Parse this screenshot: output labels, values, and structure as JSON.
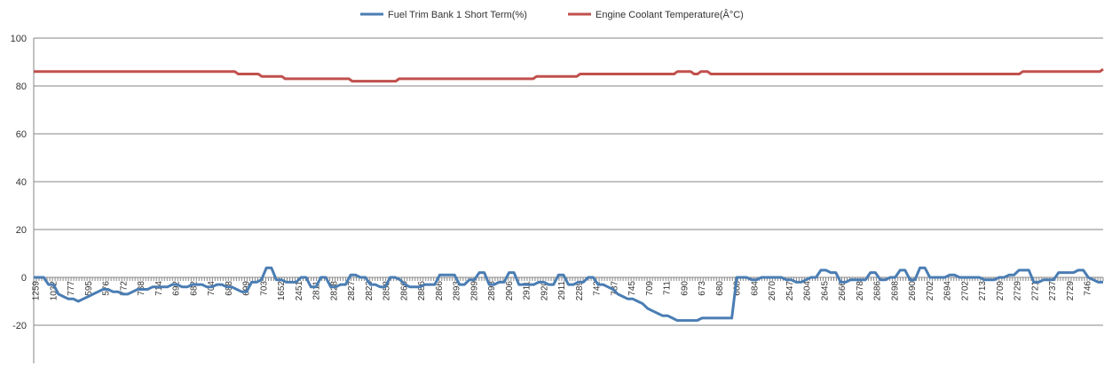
{
  "chart_data": {
    "type": "line",
    "title": "",
    "xlabel": "",
    "ylabel": "",
    "ylim": [
      -20,
      100
    ],
    "yticks": [
      -20,
      0,
      20,
      40,
      60,
      80,
      100
    ],
    "grid": true,
    "legend_position": "top",
    "x_tick_labels": [
      "1259",
      "1032",
      "777",
      "595",
      "576",
      "772",
      "738",
      "714",
      "692",
      "682",
      "704",
      "688",
      "699",
      "703",
      "1652",
      "2451",
      "2811",
      "2828",
      "2827",
      "2823",
      "2858",
      "2866",
      "2886",
      "2866",
      "2893",
      "2899",
      "2898",
      "2906",
      "2911",
      "2920",
      "2911",
      "2289",
      "742",
      "787",
      "745",
      "709",
      "711",
      "690",
      "673",
      "680",
      "668",
      "684",
      "2670",
      "2547",
      "2604",
      "2645",
      "2666",
      "2678",
      "2686",
      "2698",
      "2690",
      "2702",
      "2694",
      "2702",
      "2713",
      "2709",
      "2729",
      "2721",
      "2737",
      "2729",
      "746"
    ],
    "series": [
      {
        "name": "Fuel Trim Bank 1 Short Term(%)",
        "color": "#4a7db3",
        "values": [
          0,
          0,
          0,
          -3,
          -3,
          -7,
          -8,
          -9,
          -9,
          -10,
          -9,
          -8,
          -7,
          -6,
          -5,
          -5,
          -6,
          -6,
          -7,
          -7,
          -6,
          -5,
          -5,
          -5,
          -4,
          -4,
          -4,
          -4,
          -3,
          -3,
          -4,
          -4,
          -3,
          -3,
          -3,
          -4,
          -4,
          -3,
          -3,
          -4,
          -4,
          -5,
          -6,
          -6,
          -2,
          -2,
          -1,
          4,
          4,
          -1,
          -1,
          -2,
          -2,
          -2,
          0,
          0,
          -4,
          -4,
          0,
          0,
          -4,
          -4,
          -3,
          -3,
          1,
          1,
          0,
          0,
          -3,
          -3,
          -4,
          -4,
          0,
          0,
          -1,
          -3,
          -4,
          -4,
          -4,
          -3,
          -3,
          -3,
          1,
          1,
          1,
          1,
          -3,
          -3,
          -1,
          -1,
          2,
          2,
          -3,
          -3,
          -2,
          -2,
          2,
          2,
          -3,
          -3,
          -3,
          -3,
          -2,
          -2,
          -3,
          -3,
          1,
          1,
          -3,
          -3,
          -2,
          -2,
          0,
          0,
          -3,
          -3,
          -4,
          -5,
          -7,
          -8,
          -9,
          -9,
          -10,
          -11,
          -13,
          -14,
          -15,
          -16,
          -16,
          -17,
          -18,
          -18,
          -18,
          -18,
          -18,
          -17,
          -17,
          -17,
          -17,
          -17,
          -17,
          -17,
          0,
          0,
          0,
          -1,
          -1,
          0,
          0,
          0,
          0,
          0,
          -1,
          -1,
          -2,
          -2,
          -1,
          0,
          0,
          3,
          3,
          2,
          2,
          -2,
          -2,
          -1,
          -1,
          -1,
          -1,
          2,
          2,
          -1,
          -1,
          0,
          0,
          3,
          3,
          -1,
          -1,
          4,
          4,
          0,
          0,
          0,
          0,
          1,
          1,
          0,
          0,
          0,
          0,
          0,
          -1,
          -1,
          -1,
          0,
          0,
          1,
          1,
          3,
          3,
          3,
          -2,
          -2,
          -1,
          -1,
          -1,
          2,
          2,
          2,
          2,
          3,
          3,
          0,
          -1,
          -2,
          -2
        ]
      },
      {
        "name": "Engine Coolant Temperature(Â°C)",
        "color": "#c0504d",
        "values": [
          86,
          86,
          86,
          86,
          86,
          86,
          86,
          86,
          86,
          86,
          86,
          86,
          86,
          86,
          86,
          86,
          86,
          86,
          86,
          86,
          86,
          86,
          86,
          86,
          86,
          86,
          86,
          86,
          86,
          86,
          86,
          86,
          86,
          86,
          86,
          86,
          86,
          86,
          86,
          86,
          86,
          86,
          86,
          86,
          86,
          86,
          86,
          86,
          86,
          86,
          86,
          86,
          86,
          86,
          86,
          86,
          86,
          86,
          86,
          86,
          86,
          85,
          85,
          85,
          85,
          85,
          85,
          85,
          84,
          84,
          84,
          84,
          84,
          84,
          84,
          83,
          83,
          83,
          83,
          83,
          83,
          83,
          83,
          83,
          83,
          83,
          83,
          83,
          83,
          83,
          83,
          83,
          83,
          83,
          83,
          82,
          82,
          82,
          82,
          82,
          82,
          82,
          82,
          82,
          82,
          82,
          82,
          82,
          82,
          83,
          83,
          83,
          83,
          83,
          83,
          83,
          83,
          83,
          83,
          83,
          83,
          83,
          83,
          83,
          83,
          83,
          83,
          83,
          83,
          83,
          83,
          83,
          83,
          83,
          83,
          83,
          83,
          83,
          83,
          83,
          83,
          83,
          83,
          83,
          83,
          83,
          83,
          83,
          83,
          83,
          84,
          84,
          84,
          84,
          84,
          84,
          84,
          84,
          84,
          84,
          84,
          84,
          84,
          85,
          85,
          85,
          85,
          85,
          85,
          85,
          85,
          85,
          85,
          85,
          85,
          85,
          85,
          85,
          85,
          85,
          85,
          85,
          85,
          85,
          85,
          85,
          85,
          85,
          85,
          85,
          85,
          85,
          86,
          86,
          86,
          86,
          86,
          85,
          85,
          86,
          86,
          86,
          85,
          85,
          85,
          85,
          85,
          85,
          85,
          85,
          85,
          85,
          85,
          85,
          85,
          85,
          85,
          85,
          85,
          85,
          85,
          85,
          85,
          85,
          85,
          85,
          85,
          85,
          85,
          85,
          85,
          85,
          85,
          85,
          85,
          85,
          85,
          85,
          85,
          85,
          85,
          85,
          85,
          85,
          85,
          85,
          85,
          85,
          85,
          85,
          85,
          85,
          85,
          85,
          85,
          85,
          85,
          85,
          85,
          85,
          85,
          85,
          85,
          85,
          85,
          85,
          85,
          85,
          85,
          85,
          85,
          85,
          85,
          85,
          85,
          85,
          85,
          85,
          85,
          85,
          85,
          85,
          85,
          85,
          85,
          85,
          85,
          85,
          85,
          85,
          85,
          85,
          85,
          85,
          85,
          86,
          86,
          86,
          86,
          86,
          86,
          86,
          86,
          86,
          86,
          86,
          86,
          86,
          86,
          86,
          86,
          86,
          86,
          86,
          86,
          86,
          86,
          86,
          86,
          87
        ]
      }
    ]
  }
}
